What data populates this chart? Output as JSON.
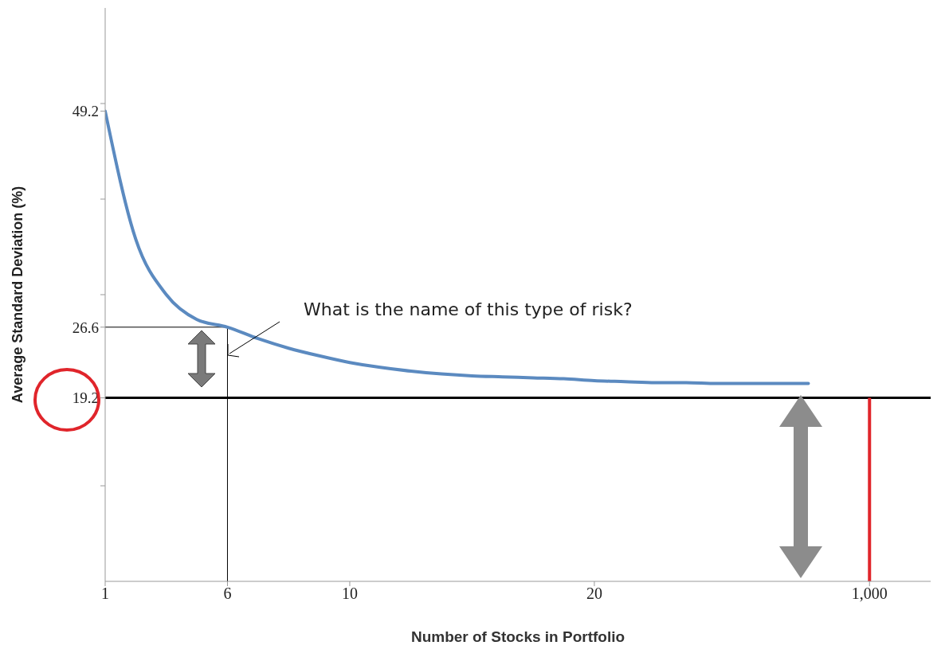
{
  "chart_data": {
    "type": "line",
    "xlabel": "Number of Stocks in Portfolio",
    "ylabel": "Average Standard Deviation (%)",
    "categories": [
      "1",
      null,
      null,
      null,
      "6",
      null,
      null,
      null,
      "10",
      null,
      null,
      null,
      null,
      null,
      null,
      null,
      "20",
      null,
      null,
      null,
      null,
      null,
      null,
      null,
      null,
      "1,000",
      null,
      null
    ],
    "series": [
      {
        "color": "#5b8ac0",
        "values": [
          49.2,
          35.8,
          30.0,
          27.4,
          26.6,
          25.4,
          24.4,
          23.6,
          22.9,
          22.4,
          22.0,
          21.7,
          21.5,
          21.4,
          21.3,
          21.2,
          21.0,
          20.9,
          20.8,
          20.8,
          20.7,
          20.7,
          20.7,
          20.7,
          null,
          null,
          null,
          null
        ]
      }
    ],
    "ylim": [
      0,
      60
    ],
    "yticks": [
      {
        "value": 10,
        "label": null
      },
      {
        "value": 19.2,
        "label": "19.2"
      },
      {
        "value": 26.6,
        "label": "26.6"
      },
      {
        "value": 30,
        "label": null
      },
      {
        "value": 40,
        "label": null
      },
      {
        "value": 49.2,
        "label": "49.2"
      },
      {
        "value": 50,
        "label": null
      }
    ],
    "ref_lines": [
      {
        "axis": "y",
        "value": 19.2,
        "color": "#000000"
      },
      {
        "axis": "y",
        "value": 26.6,
        "color": "#000000"
      },
      {
        "axis": "x",
        "value": "6",
        "color": "#000000"
      },
      {
        "axis": "x",
        "value": "1,000",
        "color": "#e0252b"
      }
    ],
    "annotations": [
      "What is the name of this type of risk?"
    ],
    "marker": "none",
    "line_style": "solid"
  }
}
